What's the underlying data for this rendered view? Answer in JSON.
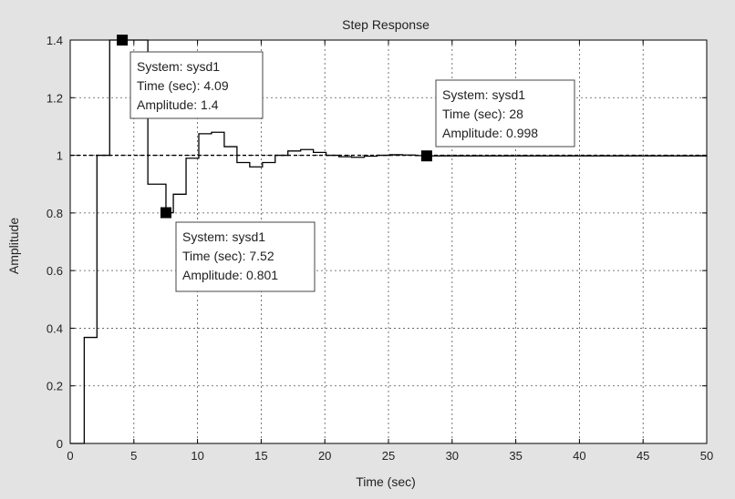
{
  "chart_data": {
    "type": "line",
    "title": "Step Response",
    "xlabel": "Time (sec)",
    "ylabel": "Amplitude",
    "xlim": [
      0,
      50
    ],
    "ylim": [
      0,
      1.4
    ],
    "grid": true,
    "x_ticks": [
      "0",
      "5",
      "10",
      "15",
      "20",
      "25",
      "30",
      "35",
      "40",
      "45",
      "50"
    ],
    "y_ticks": [
      "0",
      "0.2",
      "0.4",
      "0.6",
      "0.8",
      "1",
      "1.2",
      "1.4"
    ],
    "reference_line": 1,
    "series": [
      {
        "style": "stairs",
        "x": [
          0,
          1.1,
          2.1,
          3.1,
          4.09,
          6.1,
          7.52,
          8.1,
          9.1,
          10.1,
          11.1,
          12.1,
          13.1,
          14.1,
          15.1,
          16.1,
          17.1,
          18.1,
          19.1,
          20.1,
          21.1,
          22.1,
          23.1,
          24.1,
          25.1,
          26.1,
          27.1,
          28,
          50
        ],
        "y": [
          0,
          0.368,
          1.0,
          1.4,
          1.4,
          0.9,
          0.801,
          0.865,
          0.99,
          1.075,
          1.08,
          1.03,
          0.975,
          0.96,
          0.975,
          1.0,
          1.015,
          1.02,
          1.01,
          1.0,
          0.995,
          0.993,
          0.997,
          1.0,
          1.002,
          1.001,
          0.999,
          0.998,
          1.0
        ]
      }
    ],
    "datatips": [
      {
        "x": 4.09,
        "y": 1.4,
        "lines": [
          "System: sysd1",
          "Time (sec): 4.09",
          "Amplitude: 1.4"
        ]
      },
      {
        "x": 7.52,
        "y": 0.801,
        "lines": [
          "System: sysd1",
          "Time (sec): 7.52",
          "Amplitude: 0.801"
        ]
      },
      {
        "x": 28,
        "y": 0.998,
        "lines": [
          "System: sysd1",
          "Time (sec): 28",
          "Amplitude: 0.998"
        ]
      }
    ]
  }
}
